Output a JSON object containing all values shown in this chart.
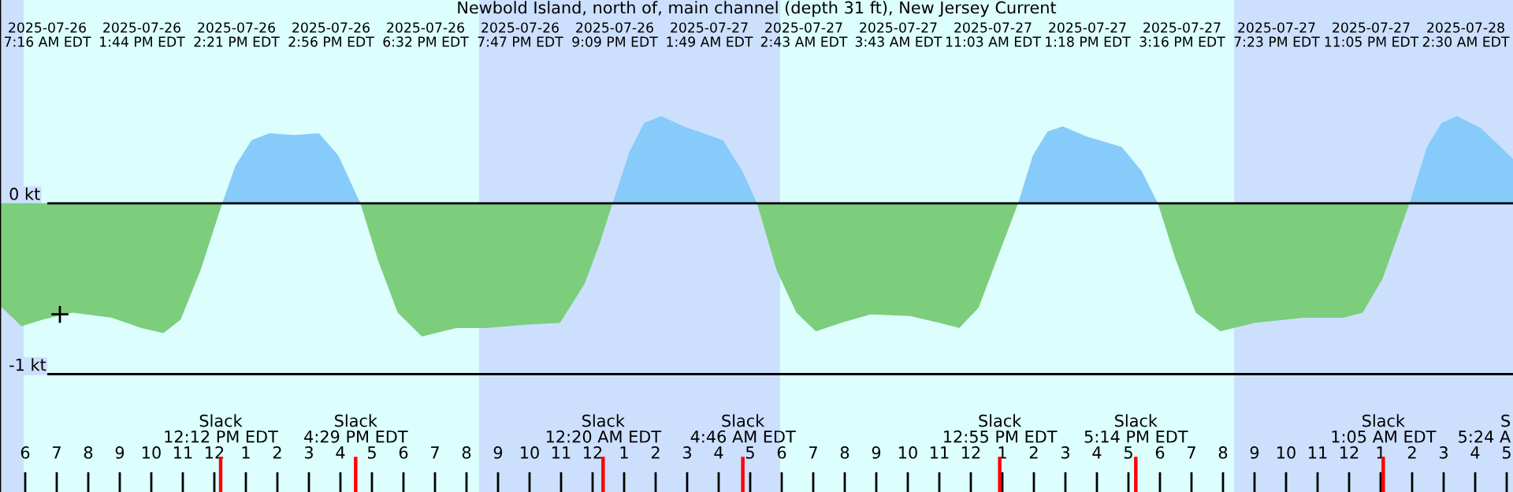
{
  "chart_data": {
    "type": "area",
    "title": "Newbold Island, north of, main channel (depth 31 ft), New Jersey Current",
    "x": [
      "2025-07-26T05:12",
      "2025-07-26T05:53",
      "2025-07-26T06:34",
      "2025-07-26T07:30",
      "2025-07-26T08:45",
      "2025-07-26T09:41",
      "2025-07-26T10:23",
      "2025-07-26T10:56",
      "2025-07-26T11:34",
      "2025-07-26T12:15",
      "2025-07-26T12:40",
      "2025-07-26T13:11",
      "2025-07-26T13:45",
      "2025-07-26T14:32",
      "2025-07-26T15:19",
      "2025-07-26T15:56",
      "2025-07-26T16:38",
      "2025-07-26T17:11",
      "2025-07-26T17:49",
      "2025-07-26T18:35",
      "2025-07-26T19:41",
      "2025-07-26T20:38",
      "2025-07-26T21:53",
      "2025-07-26T22:58",
      "2025-07-26T23:45",
      "2025-07-27T00:13",
      "2025-07-27T00:38",
      "2025-07-27T01:10",
      "2025-07-27T01:38",
      "2025-07-27T02:11",
      "2025-07-27T02:53",
      "2025-07-27T04:08",
      "2025-07-27T04:45",
      "2025-07-27T05:13",
      "2025-07-27T05:50",
      "2025-07-27T06:28",
      "2025-07-27T07:05",
      "2025-07-27T07:53",
      "2025-07-27T08:49",
      "2025-07-27T10:04",
      "2025-07-27T11:00",
      "2025-07-27T11:38",
      "2025-07-27T12:15",
      "2025-07-27T12:53",
      "2025-07-27T13:30",
      "2025-07-27T13:58",
      "2025-07-27T14:26",
      "2025-07-27T14:55",
      "2025-07-27T15:41",
      "2025-07-27T16:47",
      "2025-07-27T17:25",
      "2025-07-27T17:56",
      "2025-07-27T18:30",
      "2025-07-27T19:08",
      "2025-07-27T19:55",
      "2025-07-27T21:00",
      "2025-07-27T22:34",
      "2025-07-27T23:49",
      "2025-07-28T00:26",
      "2025-07-28T01:04",
      "2025-07-28T01:55",
      "2025-07-28T02:28",
      "2025-07-28T02:56",
      "2025-07-28T03:25",
      "2025-07-28T04:11",
      "2025-07-28T05:12"
    ],
    "series": [
      {
        "color": "#7ccd7c",
        "values": [
          -0.6,
          -0.72,
          -0.68,
          -0.64,
          -0.67,
          -0.73,
          -0.76,
          -0.68,
          -0.39,
          0,
          null,
          null,
          null,
          null,
          null,
          null,
          0,
          -0.33,
          -0.64,
          -0.78,
          -0.73,
          -0.73,
          -0.71,
          -0.7,
          -0.47,
          -0.24,
          0,
          null,
          null,
          null,
          null,
          null,
          null,
          0,
          -0.39,
          -0.64,
          -0.75,
          -0.7,
          -0.65,
          -0.66,
          -0.7,
          -0.73,
          -0.61,
          -0.3,
          0,
          null,
          null,
          null,
          null,
          null,
          null,
          0,
          -0.33,
          -0.64,
          -0.75,
          -0.7,
          -0.67,
          -0.67,
          -0.64,
          -0.44,
          0,
          null,
          null,
          null,
          null,
          null
        ]
      },
      {
        "color": "#87cbfa",
        "values": [
          null,
          null,
          null,
          null,
          null,
          null,
          null,
          null,
          null,
          0,
          0.22,
          0.37,
          0.41,
          0.4,
          0.41,
          0.28,
          0,
          null,
          null,
          null,
          null,
          null,
          null,
          null,
          null,
          null,
          0,
          0.3,
          0.47,
          0.51,
          0.45,
          0.37,
          0.19,
          0,
          null,
          null,
          null,
          null,
          null,
          null,
          null,
          null,
          null,
          null,
          0,
          0.28,
          0.42,
          0.45,
          0.39,
          0.33,
          0.19,
          0,
          null,
          null,
          null,
          null,
          null,
          null,
          null,
          null,
          0,
          0.33,
          0.47,
          0.51,
          0.44,
          0.26
        ]
      },
      {
        "type": "scatter",
        "color": "#000000",
        "marker": "cross",
        "x": [
          "2025-07-26T07:06"
        ],
        "values": [
          -0.65
        ]
      }
    ],
    "xlim": [
      "2025-07-26T05:12",
      "2025-07-28T05:12"
    ],
    "ylim": [
      -1.69,
      1.19
    ],
    "yticks": [
      {
        "value": 0,
        "label": "0 kt"
      },
      {
        "value": -1,
        "label": "-1 kt"
      }
    ],
    "xticks": [
      {
        "value": "2025-07-26T06:00",
        "label": "6"
      },
      {
        "value": "2025-07-26T07:00",
        "label": "7"
      },
      {
        "value": "2025-07-26T08:00",
        "label": "8"
      },
      {
        "value": "2025-07-26T09:00",
        "label": "9"
      },
      {
        "value": "2025-07-26T10:00",
        "label": "10"
      },
      {
        "value": "2025-07-26T11:00",
        "label": "11"
      },
      {
        "value": "2025-07-26T12:00",
        "label": "12"
      },
      {
        "value": "2025-07-26T13:00",
        "label": "1"
      },
      {
        "value": "2025-07-26T14:00",
        "label": "2"
      },
      {
        "value": "2025-07-26T15:00",
        "label": "3"
      },
      {
        "value": "2025-07-26T16:00",
        "label": "4"
      },
      {
        "value": "2025-07-26T17:00",
        "label": "5"
      },
      {
        "value": "2025-07-26T18:00",
        "label": "6"
      },
      {
        "value": "2025-07-26T19:00",
        "label": "7"
      },
      {
        "value": "2025-07-26T20:00",
        "label": "8"
      },
      {
        "value": "2025-07-26T21:00",
        "label": "9"
      },
      {
        "value": "2025-07-26T22:00",
        "label": "10"
      },
      {
        "value": "2025-07-26T23:00",
        "label": "11"
      },
      {
        "value": "2025-07-27T00:00",
        "label": "12"
      },
      {
        "value": "2025-07-27T01:00",
        "label": "1"
      },
      {
        "value": "2025-07-27T02:00",
        "label": "2"
      },
      {
        "value": "2025-07-27T03:00",
        "label": "3"
      },
      {
        "value": "2025-07-27T04:00",
        "label": "4"
      },
      {
        "value": "2025-07-27T05:00",
        "label": "5"
      },
      {
        "value": "2025-07-27T06:00",
        "label": "6"
      },
      {
        "value": "2025-07-27T07:00",
        "label": "7"
      },
      {
        "value": "2025-07-27T08:00",
        "label": "8"
      },
      {
        "value": "2025-07-27T09:00",
        "label": "9"
      },
      {
        "value": "2025-07-27T10:00",
        "label": "10"
      },
      {
        "value": "2025-07-27T11:00",
        "label": "11"
      },
      {
        "value": "2025-07-27T12:00",
        "label": "12"
      },
      {
        "value": "2025-07-27T13:00",
        "label": "1"
      },
      {
        "value": "2025-07-27T14:00",
        "label": "2"
      },
      {
        "value": "2025-07-27T15:00",
        "label": "3"
      },
      {
        "value": "2025-07-27T16:00",
        "label": "4"
      },
      {
        "value": "2025-07-27T17:00",
        "label": "5"
      },
      {
        "value": "2025-07-27T18:00",
        "label": "6"
      },
      {
        "value": "2025-07-27T19:00",
        "label": "7"
      },
      {
        "value": "2025-07-27T20:00",
        "label": "8"
      },
      {
        "value": "2025-07-27T21:00",
        "label": "9"
      },
      {
        "value": "2025-07-27T22:00",
        "label": "10"
      },
      {
        "value": "2025-07-27T23:00",
        "label": "11"
      },
      {
        "value": "2025-07-28T00:00",
        "label": "12"
      },
      {
        "value": "2025-07-28T01:00",
        "label": "1"
      },
      {
        "value": "2025-07-28T02:00",
        "label": "2"
      },
      {
        "value": "2025-07-28T03:00",
        "label": "3"
      },
      {
        "value": "2025-07-28T04:00",
        "label": "4"
      },
      {
        "value": "2025-07-28T05:00",
        "label": "5"
      }
    ],
    "grid": "y",
    "bands": [
      {
        "axis": "x",
        "from": "2025-07-26T05:12",
        "to": "2025-07-26T05:57",
        "color": "#cce0fe"
      },
      {
        "axis": "x",
        "from": "2025-07-26T05:57",
        "to": "2025-07-26T20:24",
        "color": "#dcfffe"
      },
      {
        "axis": "x",
        "from": "2025-07-26T20:24",
        "to": "2025-07-27T05:57",
        "color": "#cce0fe"
      },
      {
        "axis": "x",
        "from": "2025-07-27T05:57",
        "to": "2025-07-27T20:21",
        "color": "#dcfffe"
      },
      {
        "axis": "x",
        "from": "2025-07-27T20:21",
        "to": "2025-07-28T05:12",
        "color": "#cce0fe"
      }
    ],
    "ref_lines": [
      {
        "axis": "x",
        "value": "2025-07-26T12:12",
        "label": "Slack\n12:12 PM EDT",
        "color": "#ff0000"
      },
      {
        "axis": "x",
        "value": "2025-07-26T16:29",
        "label": "Slack\n4:29 PM EDT",
        "color": "#ff0000"
      },
      {
        "axis": "x",
        "value": "2025-07-27T00:20",
        "label": "Slack\n12:20 AM EDT",
        "color": "#ff0000"
      },
      {
        "axis": "x",
        "value": "2025-07-27T04:46",
        "label": "Slack\n4:46 AM EDT",
        "color": "#ff0000"
      },
      {
        "axis": "x",
        "value": "2025-07-27T12:55",
        "label": "Slack\n12:55 PM EDT",
        "color": "#ff0000"
      },
      {
        "axis": "x",
        "value": "2025-07-27T17:14",
        "label": "Slack\n5:14 PM EDT",
        "color": "#ff0000"
      },
      {
        "axis": "x",
        "value": "2025-07-28T01:05",
        "label": "Slack\n1:05 AM EDT",
        "color": "#ff0000"
      }
    ],
    "annotations": [
      "2025-07-26\n7:16 AM EDT",
      "2025-07-26\n1:44 PM EDT",
      "2025-07-26\n2:21 PM EDT",
      "2025-07-26\n2:56 PM EDT",
      "2025-07-26\n6:32 PM EDT",
      "2025-07-26\n7:47 PM EDT",
      "2025-07-26\n9:09 PM EDT",
      "2025-07-27\n1:49 AM EDT",
      "2025-07-27\n2:43 AM EDT",
      "2025-07-27\n3:43 AM EDT",
      "2025-07-27\n11:03 AM EDT",
      "2025-07-27\n1:18 PM EDT",
      "2025-07-27\n3:16 PM EDT",
      "2025-07-27\n7:23 PM EDT",
      "2025-07-27\n11:05 PM EDT",
      "2025-07-28\n2:30 AM EDT",
      "S\n5:24 A"
    ]
  }
}
